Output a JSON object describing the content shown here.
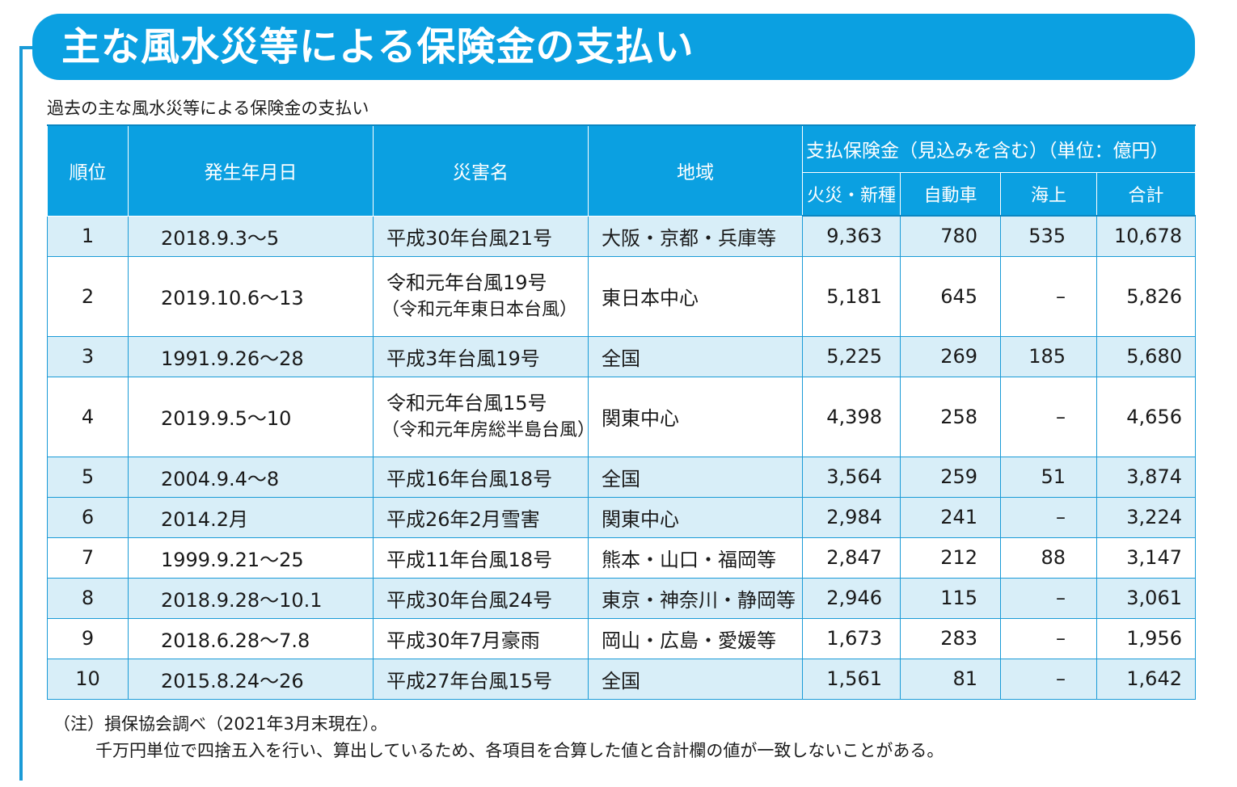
{
  "title": "主な風水災等による保険金の支払い",
  "subtitle": "過去の主な風水災等による保険金の支払い",
  "headers": {
    "rank": "順位",
    "date": "発生年月日",
    "disaster": "災害名",
    "region": "地域",
    "payment_group": "支払保険金（見込みを含む）（単位：億円）",
    "fire_new": "火災・新種",
    "auto": "自動車",
    "marine": "海上",
    "total": "合計"
  },
  "rows": [
    {
      "rank": "1",
      "date": "2018.9.3～5",
      "name": "平成30年台風21号",
      "name2": "",
      "region": "大阪・京都・兵庫等",
      "fire": "9,363",
      "auto": "780",
      "marine": "535",
      "total": "10,678"
    },
    {
      "rank": "2",
      "date": "2019.10.6～13",
      "name": "令和元年台風19号",
      "name2": "（令和元年東日本台風）",
      "region": "東日本中心",
      "fire": "5,181",
      "auto": "645",
      "marine": "–",
      "total": "5,826"
    },
    {
      "rank": "3",
      "date": "1991.9.26～28",
      "name": "平成3年台風19号",
      "name2": "",
      "region": "全国",
      "fire": "5,225",
      "auto": "269",
      "marine": "185",
      "total": "5,680"
    },
    {
      "rank": "4",
      "date": "2019.9.5～10",
      "name": "令和元年台風15号",
      "name2": "（令和元年房総半島台風）",
      "region": "関東中心",
      "fire": "4,398",
      "auto": "258",
      "marine": "–",
      "total": "4,656"
    },
    {
      "rank": "5",
      "date": "2004.9.4～8",
      "name": "平成16年台風18号",
      "name2": "",
      "region": "全国",
      "fire": "3,564",
      "auto": "259",
      "marine": "51",
      "total": "3,874"
    },
    {
      "rank": "6",
      "date": "2014.2月",
      "name": "平成26年2月雪害",
      "name2": "",
      "region": "関東中心",
      "fire": "2,984",
      "auto": "241",
      "marine": "–",
      "total": "3,224"
    },
    {
      "rank": "7",
      "date": "1999.9.21～25",
      "name": "平成11年台風18号",
      "name2": "",
      "region": "熊本・山口・福岡等",
      "fire": "2,847",
      "auto": "212",
      "marine": "88",
      "total": "3,147"
    },
    {
      "rank": "8",
      "date": "2018.9.28～10.1",
      "name": "平成30年台風24号",
      "name2": "",
      "region": "東京・神奈川・静岡等",
      "fire": "2,946",
      "auto": "115",
      "marine": "–",
      "total": "3,061"
    },
    {
      "rank": "9",
      "date": "2018.6.28～7.8",
      "name": "平成30年7月豪雨",
      "name2": "",
      "region": "岡山・広島・愛媛等",
      "fire": "1,673",
      "auto": "283",
      "marine": "–",
      "total": "1,956"
    },
    {
      "rank": "10",
      "date": "2015.8.24～26",
      "name": "平成27年台風15号",
      "name2": "",
      "region": "全国",
      "fire": "1,561",
      "auto": "81",
      "marine": "–",
      "total": "1,642"
    }
  ],
  "notes": {
    "line1": "（注）損保協会調べ（2021年3月末現在）。",
    "line2": "千万円単位で四捨五入を行い、算出しているため、各項目を合算した値と合計欄の値が一致しないことがある。"
  },
  "colors": {
    "accent": "#0ba0e1",
    "row_alt": "#d8eef8"
  }
}
